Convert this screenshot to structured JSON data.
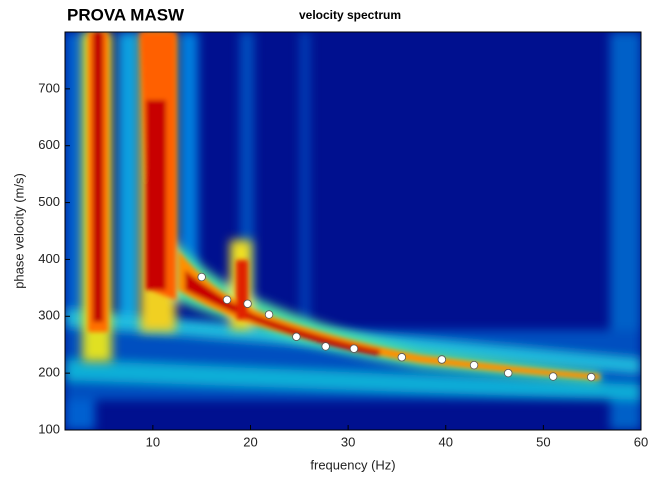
{
  "chart_data": {
    "type": "scatter",
    "title": "PROVA MASW",
    "subtitle": "velocity spectrum",
    "x_label": "frequency (Hz)",
    "y_label": "phase velocity (m/s)",
    "x": [
      15.0,
      17.6,
      19.7,
      21.9,
      24.7,
      27.7,
      30.6,
      35.5,
      39.6,
      42.9,
      46.4,
      51.0,
      54.9
    ],
    "values": [
      369,
      329,
      322,
      303,
      264,
      247,
      243,
      228,
      224,
      214,
      200,
      194,
      193
    ],
    "color": "#ffffff",
    "xlim": [
      1,
      60
    ],
    "xticks": [
      10,
      20,
      30,
      40,
      50,
      60
    ],
    "ylim": [
      100,
      800
    ],
    "yticks": [
      100,
      200,
      300,
      400,
      500,
      600,
      700
    ]
  }
}
